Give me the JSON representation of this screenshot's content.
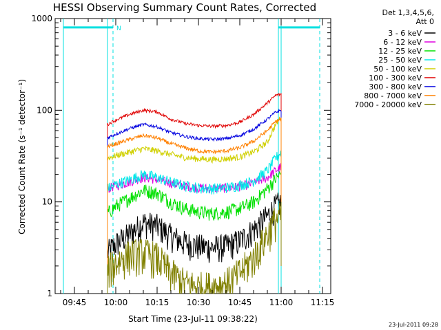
{
  "chart_data": {
    "type": "line",
    "title": "HESSI Observing Summary Count Rates, Corrected",
    "xlabel": "Start Time (23-Jul-11 09:38:22)",
    "ylabel": "Corrected Count Rate (s⁻¹ detector⁻¹)",
    "y_scale": "log",
    "ylim": [
      1,
      1000
    ],
    "xlim": [
      "09:38",
      "11:18"
    ],
    "x_ticks": [
      "09:45",
      "10:00",
      "10:15",
      "10:30",
      "10:45",
      "11:00",
      "11:15"
    ],
    "y_ticks": [
      "1",
      "10",
      "100",
      "1000"
    ],
    "legend": {
      "position": "top-right",
      "header": [
        "Det 1,3,4,5,6,",
        "Att 0"
      ]
    },
    "x": [
      "09:57",
      "10:00",
      "10:05",
      "10:10",
      "10:15",
      "10:20",
      "10:25",
      "10:30",
      "10:35",
      "10:40",
      "10:45",
      "10:50",
      "10:55",
      "10:58",
      "11:00"
    ],
    "series": [
      {
        "name": "3 - 6 keV",
        "color": "#000000",
        "values": [
          2.8,
          3.5,
          4.5,
          6.0,
          5.5,
          4.3,
          3.6,
          3.3,
          3.2,
          3.3,
          3.8,
          5.0,
          7.0,
          9.0,
          10.0
        ]
      },
      {
        "name": "6 - 12 keV",
        "color": "#e000e0",
        "values": [
          14,
          15,
          16.5,
          18.5,
          17.5,
          16,
          15,
          14.2,
          14,
          14.2,
          14.8,
          16,
          18.5,
          22,
          24
        ]
      },
      {
        "name": "12 - 25 keV",
        "color": "#00e000",
        "values": [
          7.5,
          9,
          11,
          13.5,
          12.5,
          10,
          8.5,
          7.8,
          7.5,
          7.8,
          8.5,
          10,
          14,
          18,
          20
        ]
      },
      {
        "name": "25 - 50 keV",
        "color": "#00e8e8",
        "values": [
          14,
          15.5,
          17.5,
          20,
          18.5,
          16.5,
          15,
          14.2,
          14,
          14.3,
          15.2,
          17,
          22,
          30,
          35
        ]
      },
      {
        "name": "50 - 100 keV",
        "color": "#d0d000",
        "values": [
          30,
          32,
          35,
          38,
          36,
          33,
          30.5,
          29.5,
          29,
          29.5,
          31,
          35,
          45,
          70,
          85
        ]
      },
      {
        "name": "100 - 300 keV",
        "color": "#e00000",
        "values": [
          70,
          78,
          90,
          100,
          96,
          80,
          72,
          68,
          67,
          68,
          74,
          90,
          120,
          145,
          150
        ]
      },
      {
        "name": "300 - 800 keV",
        "color": "#0000e0",
        "values": [
          50,
          55,
          63,
          70,
          66,
          57,
          52,
          49,
          48,
          49,
          53,
          62,
          80,
          95,
          100
        ]
      },
      {
        "name": "800 - 7000 keV",
        "color": "#ff8000",
        "values": [
          40,
          43,
          48,
          53,
          50,
          43,
          39,
          36,
          35,
          36,
          39,
          46,
          60,
          75,
          80
        ]
      },
      {
        "name": "7000 - 20000 keV",
        "color": "#808000",
        "values": [
          1.8,
          2.2,
          2.7,
          2.8,
          2.5,
          1.7,
          1.3,
          1.2,
          1.2,
          1.3,
          1.7,
          2.5,
          4.5,
          6.5,
          7.0
        ]
      }
    ],
    "markers": {
      "label": "N",
      "color": "#00e0e0",
      "vertical_lines": [
        {
          "time": "09:41",
          "style": "solid"
        },
        {
          "time": "09:57",
          "style": "solid"
        },
        {
          "time": "09:59",
          "style": "dashed"
        },
        {
          "time": "10:59",
          "style": "solid"
        },
        {
          "time": "11:00",
          "style": "solid"
        },
        {
          "time": "11:14",
          "style": "dashed"
        }
      ],
      "bars": [
        {
          "start": "09:41",
          "end": "09:59",
          "value": 800
        },
        {
          "start": "10:59",
          "end": "11:14",
          "value": 800
        }
      ]
    },
    "grid": false
  },
  "footer": {
    "timestamp": "23-Jul-2011 09:28"
  }
}
